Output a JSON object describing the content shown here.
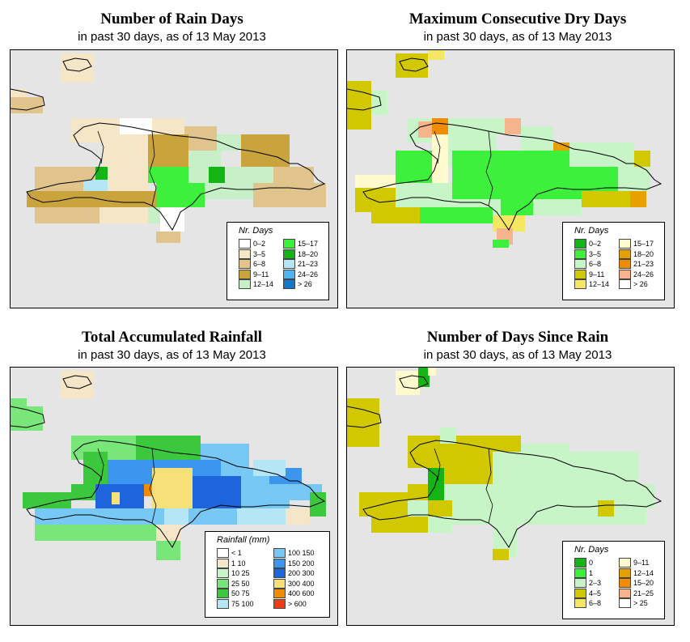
{
  "panels": [
    {
      "id": "rain-days",
      "title": "Number of Rain Days",
      "subtitle": "in past 30 days, as of  13 May 2013",
      "legend_title": "Nr. Days",
      "legend": [
        {
          "label": "0–2",
          "color": "#ffffff"
        },
        {
          "label": "3–5",
          "color": "#f5e6c8"
        },
        {
          "label": "6–8",
          "color": "#e0c48c"
        },
        {
          "label": "9–11",
          "color": "#c9a43c"
        },
        {
          "label": "12–14",
          "color": "#c8f0c8"
        },
        {
          "label": "15–17",
          "color": "#3cf03c"
        },
        {
          "label": "18–20",
          "color": "#14b414"
        },
        {
          "label": "21–23",
          "color": "#b4e6f5"
        },
        {
          "label": "24–26",
          "color": "#50b4f0"
        },
        {
          "label": "> 26",
          "color": "#1478c8"
        }
      ]
    },
    {
      "id": "max-dry-days",
      "title": "Maximum Consecutive Dry Days",
      "subtitle": "in past 30 days, as of  13 May 2013",
      "legend_title": "Nr. Days",
      "legend": [
        {
          "label": "0–2",
          "color": "#14b414"
        },
        {
          "label": "3–5",
          "color": "#3cf03c"
        },
        {
          "label": "6–8",
          "color": "#c8f5c8"
        },
        {
          "label": "9–11",
          "color": "#d2c800"
        },
        {
          "label": "12–14",
          "color": "#f5e664"
        },
        {
          "label": "15–17",
          "color": "#fffacd"
        },
        {
          "label": "18–20",
          "color": "#e6a000"
        },
        {
          "label": "21–23",
          "color": "#f08c00"
        },
        {
          "label": "24–26",
          "color": "#f5b48c"
        },
        {
          "label": "> 26",
          "color": "#ffffff"
        }
      ]
    },
    {
      "id": "total-rainfall",
      "title": "Total Accumulated Rainfall",
      "subtitle": "in past 30 days, as of  13 May 2013",
      "legend_title": "Rainfall (mm)",
      "legend": [
        {
          "label": "< 1",
          "color": "#ffffff"
        },
        {
          "label": "1   10",
          "color": "#f5e6c8"
        },
        {
          "label": "10   25",
          "color": "#c8f5c8"
        },
        {
          "label": "25   50",
          "color": "#78e678"
        },
        {
          "label": "50   75",
          "color": "#3cc83c"
        },
        {
          "label": "75  100",
          "color": "#b4e6f5"
        },
        {
          "label": "100  150",
          "color": "#78c8f5"
        },
        {
          "label": "150  200",
          "color": "#3c96f0"
        },
        {
          "label": "200  300",
          "color": "#1e64dc"
        },
        {
          "label": "300  400",
          "color": "#f5e178"
        },
        {
          "label": "400  600",
          "color": "#f08c00"
        },
        {
          "label": "> 600",
          "color": "#f03c14"
        }
      ]
    },
    {
      "id": "days-since-rain",
      "title": "Number of Days Since Rain",
      "subtitle": "in past 30 days, as of  13 May 2013",
      "legend_title": "Nr. Days",
      "legend": [
        {
          "label": "0",
          "color": "#14b414"
        },
        {
          "label": "1",
          "color": "#3cf03c"
        },
        {
          "label": "2–3",
          "color": "#c8f5c8"
        },
        {
          "label": "4–5",
          "color": "#d2c800"
        },
        {
          "label": "6–8",
          "color": "#f5e664"
        },
        {
          "label": "9–11",
          "color": "#fffacd"
        },
        {
          "label": "12–14",
          "color": "#e6a000"
        },
        {
          "label": "15–20",
          "color": "#f08c00"
        },
        {
          "label": "21–25",
          "color": "#f5b48c"
        },
        {
          "label": "> 25",
          "color": "#ffffff"
        }
      ]
    }
  ]
}
